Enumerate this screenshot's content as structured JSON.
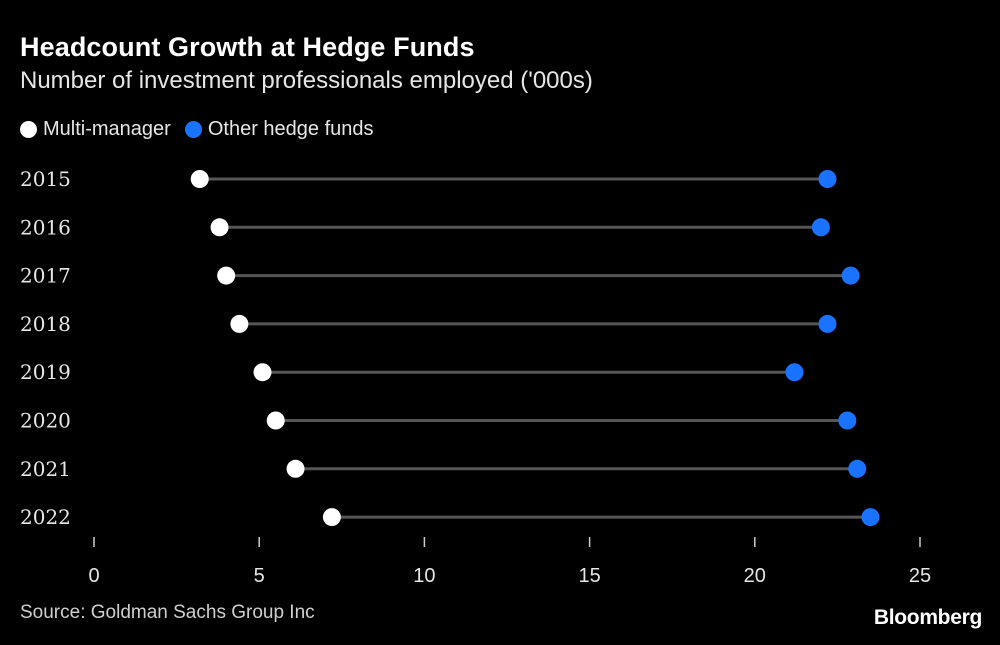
{
  "title": "Headcount Growth at Hedge Funds",
  "subtitle": "Number of investment professionals employed ('000s)",
  "source": "Source: Goldman Sachs Group Inc",
  "logo_text": "Bloomberg",
  "colors": {
    "background": "#000000",
    "multi_manager": "#ffffff",
    "other_hedge_funds": "#1a73ff",
    "connector": "#555555",
    "axis": "#cccccc"
  },
  "chart_data": {
    "type": "dumbbell",
    "title": "Headcount Growth at Hedge Funds",
    "subtitle": "Number of investment professionals employed ('000s)",
    "legend_position": "top-left",
    "categories": [
      "2015",
      "2016",
      "2017",
      "2018",
      "2019",
      "2020",
      "2021",
      "2022"
    ],
    "series": [
      {
        "name": "Multi-manager",
        "color": "#ffffff",
        "values": [
          3.2,
          3.8,
          4.0,
          4.4,
          5.1,
          5.5,
          6.1,
          7.2
        ]
      },
      {
        "name": "Other hedge funds",
        "color": "#1a73ff",
        "values": [
          22.2,
          22.0,
          22.9,
          22.2,
          21.2,
          22.8,
          23.1,
          23.5
        ]
      }
    ],
    "xlim": [
      0,
      25
    ],
    "xticks": [
      0,
      5,
      10,
      15,
      20,
      25
    ],
    "grid": false
  }
}
